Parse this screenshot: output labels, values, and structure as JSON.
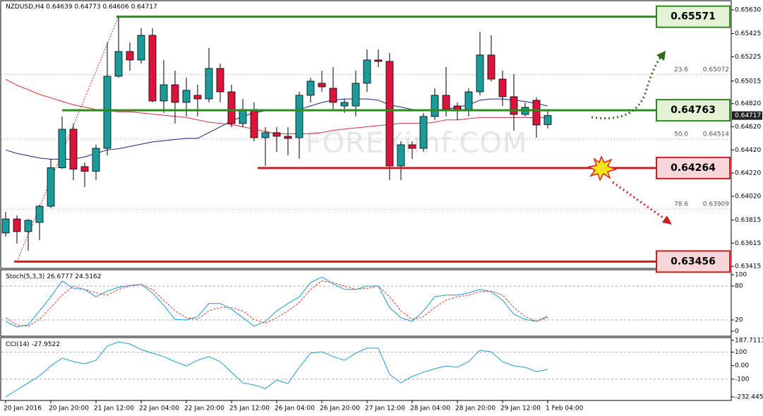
{
  "chart_data": {
    "type": "candlestick",
    "symbol": "NZDUSD,H4",
    "categories": [
      "20 Jan 2016",
      null,
      null,
      null,
      "20 Jan 20:00",
      null,
      null,
      null,
      "21 Jan 12:00",
      null,
      null,
      null,
      "22 Jan 04:00",
      null,
      null,
      null,
      "22 Jan 20:00",
      null,
      null,
      null,
      "25 Jan 12:00",
      null,
      null,
      null,
      "26 Jan 04:00",
      null,
      null,
      null,
      "26 Jan 20:00",
      null,
      null,
      null,
      "27 Jan 12:00",
      null,
      null,
      null,
      "28 Jan 04:00",
      null,
      null,
      null,
      "28 Jan 20:00",
      null,
      null,
      null,
      "29 Jan 12:00",
      null,
      null,
      null,
      "1 Feb 04:00"
    ],
    "open": [
      0.63703,
      0.63824,
      0.63715,
      0.63794,
      0.63934,
      0.64266,
      0.64599,
      0.64276,
      0.64236,
      0.64434,
      0.65057,
      0.6527,
      0.65197,
      0.6541,
      0.64843,
      0.64983,
      0.64831,
      0.64892,
      0.64861,
      0.65124,
      0.64922,
      0.64648,
      0.6477,
      0.64526,
      0.64569,
      0.64538,
      0.64526,
      0.64892,
      0.64996,
      0.64953,
      0.648,
      0.648,
      0.64996,
      0.65197,
      0.65185,
      0.64282,
      0.64465,
      0.64434,
      0.64709,
      0.64892,
      0.648,
      0.6477,
      0.64922,
      0.6524,
      0.65032,
      0.6488,
      0.64727,
      0.64849,
      0.64639
    ],
    "high": [
      0.63885,
      0.63855,
      0.63824,
      0.63946,
      0.64343,
      0.64709,
      0.64648,
      0.64312,
      0.64465,
      0.65349,
      0.65563,
      0.65349,
      0.65471,
      0.65471,
      0.65197,
      0.65105,
      0.65044,
      0.64983,
      0.653,
      0.65166,
      0.64983,
      0.64861,
      0.64831,
      0.64617,
      0.64617,
      0.64617,
      0.64922,
      0.65044,
      0.65105,
      0.65136,
      0.64861,
      0.65105,
      0.65288,
      0.65288,
      0.65258,
      0.64495,
      0.64495,
      0.64739,
      0.64953,
      0.65136,
      0.64831,
      0.64953,
      0.65441,
      0.6541,
      0.65105,
      0.65075,
      0.64831,
      0.64874,
      0.64773
    ],
    "low": [
      0.63672,
      0.63611,
      0.6355,
      0.63642,
      0.63916,
      0.64254,
      0.6416,
      0.64099,
      0.6416,
      0.64373,
      0.65044,
      0.65105,
      0.65166,
      0.64831,
      0.64739,
      0.64648,
      0.64709,
      0.64709,
      0.64831,
      0.64831,
      0.64617,
      0.64617,
      0.64495,
      0.64282,
      0.64404,
      0.64373,
      0.64343,
      0.64831,
      0.64922,
      0.6477,
      0.64739,
      0.64709,
      0.64922,
      0.65136,
      0.6416,
      0.6416,
      0.64343,
      0.64404,
      0.64678,
      0.64709,
      0.64678,
      0.64709,
      0.64892,
      0.65014,
      0.648,
      0.64587,
      0.64709,
      0.64526,
      0.64606
    ],
    "close": [
      0.63824,
      0.63715,
      0.63812,
      0.63934,
      0.64266,
      0.64599,
      0.64254,
      0.64236,
      0.64434,
      0.65057,
      0.6527,
      0.65197,
      0.6541,
      0.64843,
      0.64983,
      0.64831,
      0.64935,
      0.64861,
      0.65124,
      0.64922,
      0.64648,
      0.6477,
      0.64526,
      0.64569,
      0.64538,
      0.6452,
      0.64892,
      0.65014,
      0.64965,
      0.64831,
      0.64831,
      0.64996,
      0.65197,
      0.65185,
      0.64282,
      0.64465,
      0.64434,
      0.64709,
      0.64892,
      0.6477,
      0.6477,
      0.64922,
      0.6524,
      0.65032,
      0.6488,
      0.64727,
      0.64788,
      0.64636,
      0.64717
    ],
    "up_color": "#1a9c9c",
    "down_color": "#dc143c",
    "ylim": [
      0.63397,
      0.65703
    ],
    "yticks": [
      {
        "value": 0.6563,
        "label": "0.65630"
      },
      0.65425,
      0.65225,
      0.65015,
      {
        "value": 0.6482,
        "label": "0.64820"
      },
      {
        "value": 0.6462,
        "label": "0.64620"
      },
      {
        "value": 0.6442,
        "label": "0.64420"
      },
      {
        "value": 0.6422,
        "label": "0.64220"
      },
      {
        "value": 0.6402,
        "label": "0.64020"
      },
      0.63815,
      0.63615,
      0.63415
    ],
    "series": [
      {
        "color": "#1a237e",
        "values": [
          0.6442,
          0.6439,
          0.6437,
          0.6435,
          0.6434,
          0.6434,
          0.6434,
          0.6436,
          0.6439,
          0.6442,
          0.6443,
          0.6445,
          0.6447,
          0.6449,
          0.645,
          0.6451,
          0.6452,
          0.6452,
          0.6457,
          0.6462,
          0.6467,
          0.6471,
          0.6474,
          0.6476,
          0.6476,
          0.6476,
          0.6477,
          0.648,
          0.6483,
          0.6485,
          0.6486,
          0.6486,
          0.6486,
          0.6485,
          0.6481,
          0.6479,
          0.6477,
          0.6476,
          0.6476,
          0.6477,
          0.6479,
          0.6481,
          0.6485,
          0.6486,
          0.6486,
          0.6485,
          0.6484,
          0.6482,
          0.648
        ]
      },
      {
        "color": "#d32f2f",
        "values": [
          0.6503,
          0.6498,
          0.6494,
          0.649,
          0.6487,
          0.6484,
          0.6481,
          0.6479,
          0.6477,
          0.6476,
          0.6475,
          0.6475,
          0.6474,
          0.6473,
          0.6472,
          0.6471,
          0.647,
          0.6468,
          0.6466,
          0.6465,
          0.6464,
          0.6462,
          0.646,
          0.6458,
          0.6456,
          0.6456,
          0.6456,
          0.6456,
          0.6457,
          0.6459,
          0.646,
          0.6461,
          0.6462,
          0.6463,
          0.6464,
          0.6465,
          0.6465,
          0.6465,
          0.6466,
          0.6468,
          0.6468,
          0.6469,
          0.647,
          0.647,
          0.647,
          0.647,
          0.647,
          0.647,
          0.647
        ]
      }
    ],
    "levels": [
      {
        "value": 0.65571,
        "color": "#2e8b1e",
        "fill": "#e4f2d5"
      },
      {
        "value": 0.64763,
        "color": "#2e8b1e",
        "fill": "#e4f2d5"
      },
      {
        "value": 0.64264,
        "color": "#cc1f1f",
        "fill": "#f8d7da"
      },
      {
        "value": 0.63456,
        "color": "#cc1f1f",
        "fill": "#f8d7da"
      }
    ],
    "fib": [
      {
        "level": 23.6,
        "price": 0.65072
      },
      {
        "level": {
          "value": 50,
          "label": "50.0"
        },
        "price": 0.64514
      },
      {
        "level": 78.6,
        "price": 0.63909
      }
    ],
    "watermark": "FOREXimf.COM",
    "indicators": [
      {
        "type": "line",
        "title": "Stoch(5,3,3)",
        "ylim": [
          -7.5,
          107.5
        ],
        "yticks": [
          0,
          20,
          80,
          100
        ],
        "levels": [
          20,
          80
        ],
        "series": [
          {
            "color": "#1e9ad6",
            "dashed": false,
            "values": [
              17.5,
              7.5,
              11.3,
              36,
              61,
              89,
              76,
              74,
              61,
              71,
              78,
              81,
              83,
              68,
              46,
              21,
              20,
              26,
              49,
              49,
              39,
              24,
              9,
              17.5,
              36,
              49,
              61,
              86,
              96,
              84,
              74,
              74,
              80,
              80,
              42,
              24,
              17.5,
              36,
              61,
              64,
              64,
              68,
              74,
              70,
              55,
              30,
              21,
              17.5,
              26.6777
            ]
          },
          {
            "color": "#e53935",
            "dashed": true,
            "values": [
              24,
              11,
              9,
              21,
              42,
              64,
              80,
              74,
              68,
              64,
              74,
              80,
              83,
              74,
              55,
              36,
              24,
              21,
              36,
              42,
              42,
              36,
              21,
              14,
              24,
              36,
              51,
              74,
              89,
              86,
              80,
              74,
              76,
              80,
              61,
              36,
              21,
              26,
              42,
              55,
              61,
              64,
              70,
              71,
              64,
              42,
              26,
              17.5,
              24.5162
            ]
          }
        ]
      },
      {
        "type": "line",
        "title": "CCI(14)",
        "ylim": [
          -253.5,
          208.4
        ],
        "yticks": [
          -232.445,
          -100,
          {
            "value": 0,
            "label": "0.00"
          },
          100,
          187.7111
        ],
        "levels": [
          -100,
          100
        ],
        "series": [
          {
            "color": "#1e9ad6",
            "dashed": false,
            "values": [
              -232,
              -180,
              -128,
              -75,
              -2,
              56,
              30,
              14,
              40,
              145,
              177,
              161,
              119,
              93,
              67,
              30,
              -2,
              40,
              67,
              30,
              -49,
              -128,
              -143,
              -170,
              -107,
              -133,
              -12,
              93,
              103,
              67,
              40,
              93,
              130,
              130,
              -65,
              -128,
              -80,
              -49,
              -23,
              -2,
              -12,
              30,
              114,
              103,
              30,
              -2,
              -12,
              -44,
              -27.9522
            ]
          }
        ]
      }
    ]
  }
}
